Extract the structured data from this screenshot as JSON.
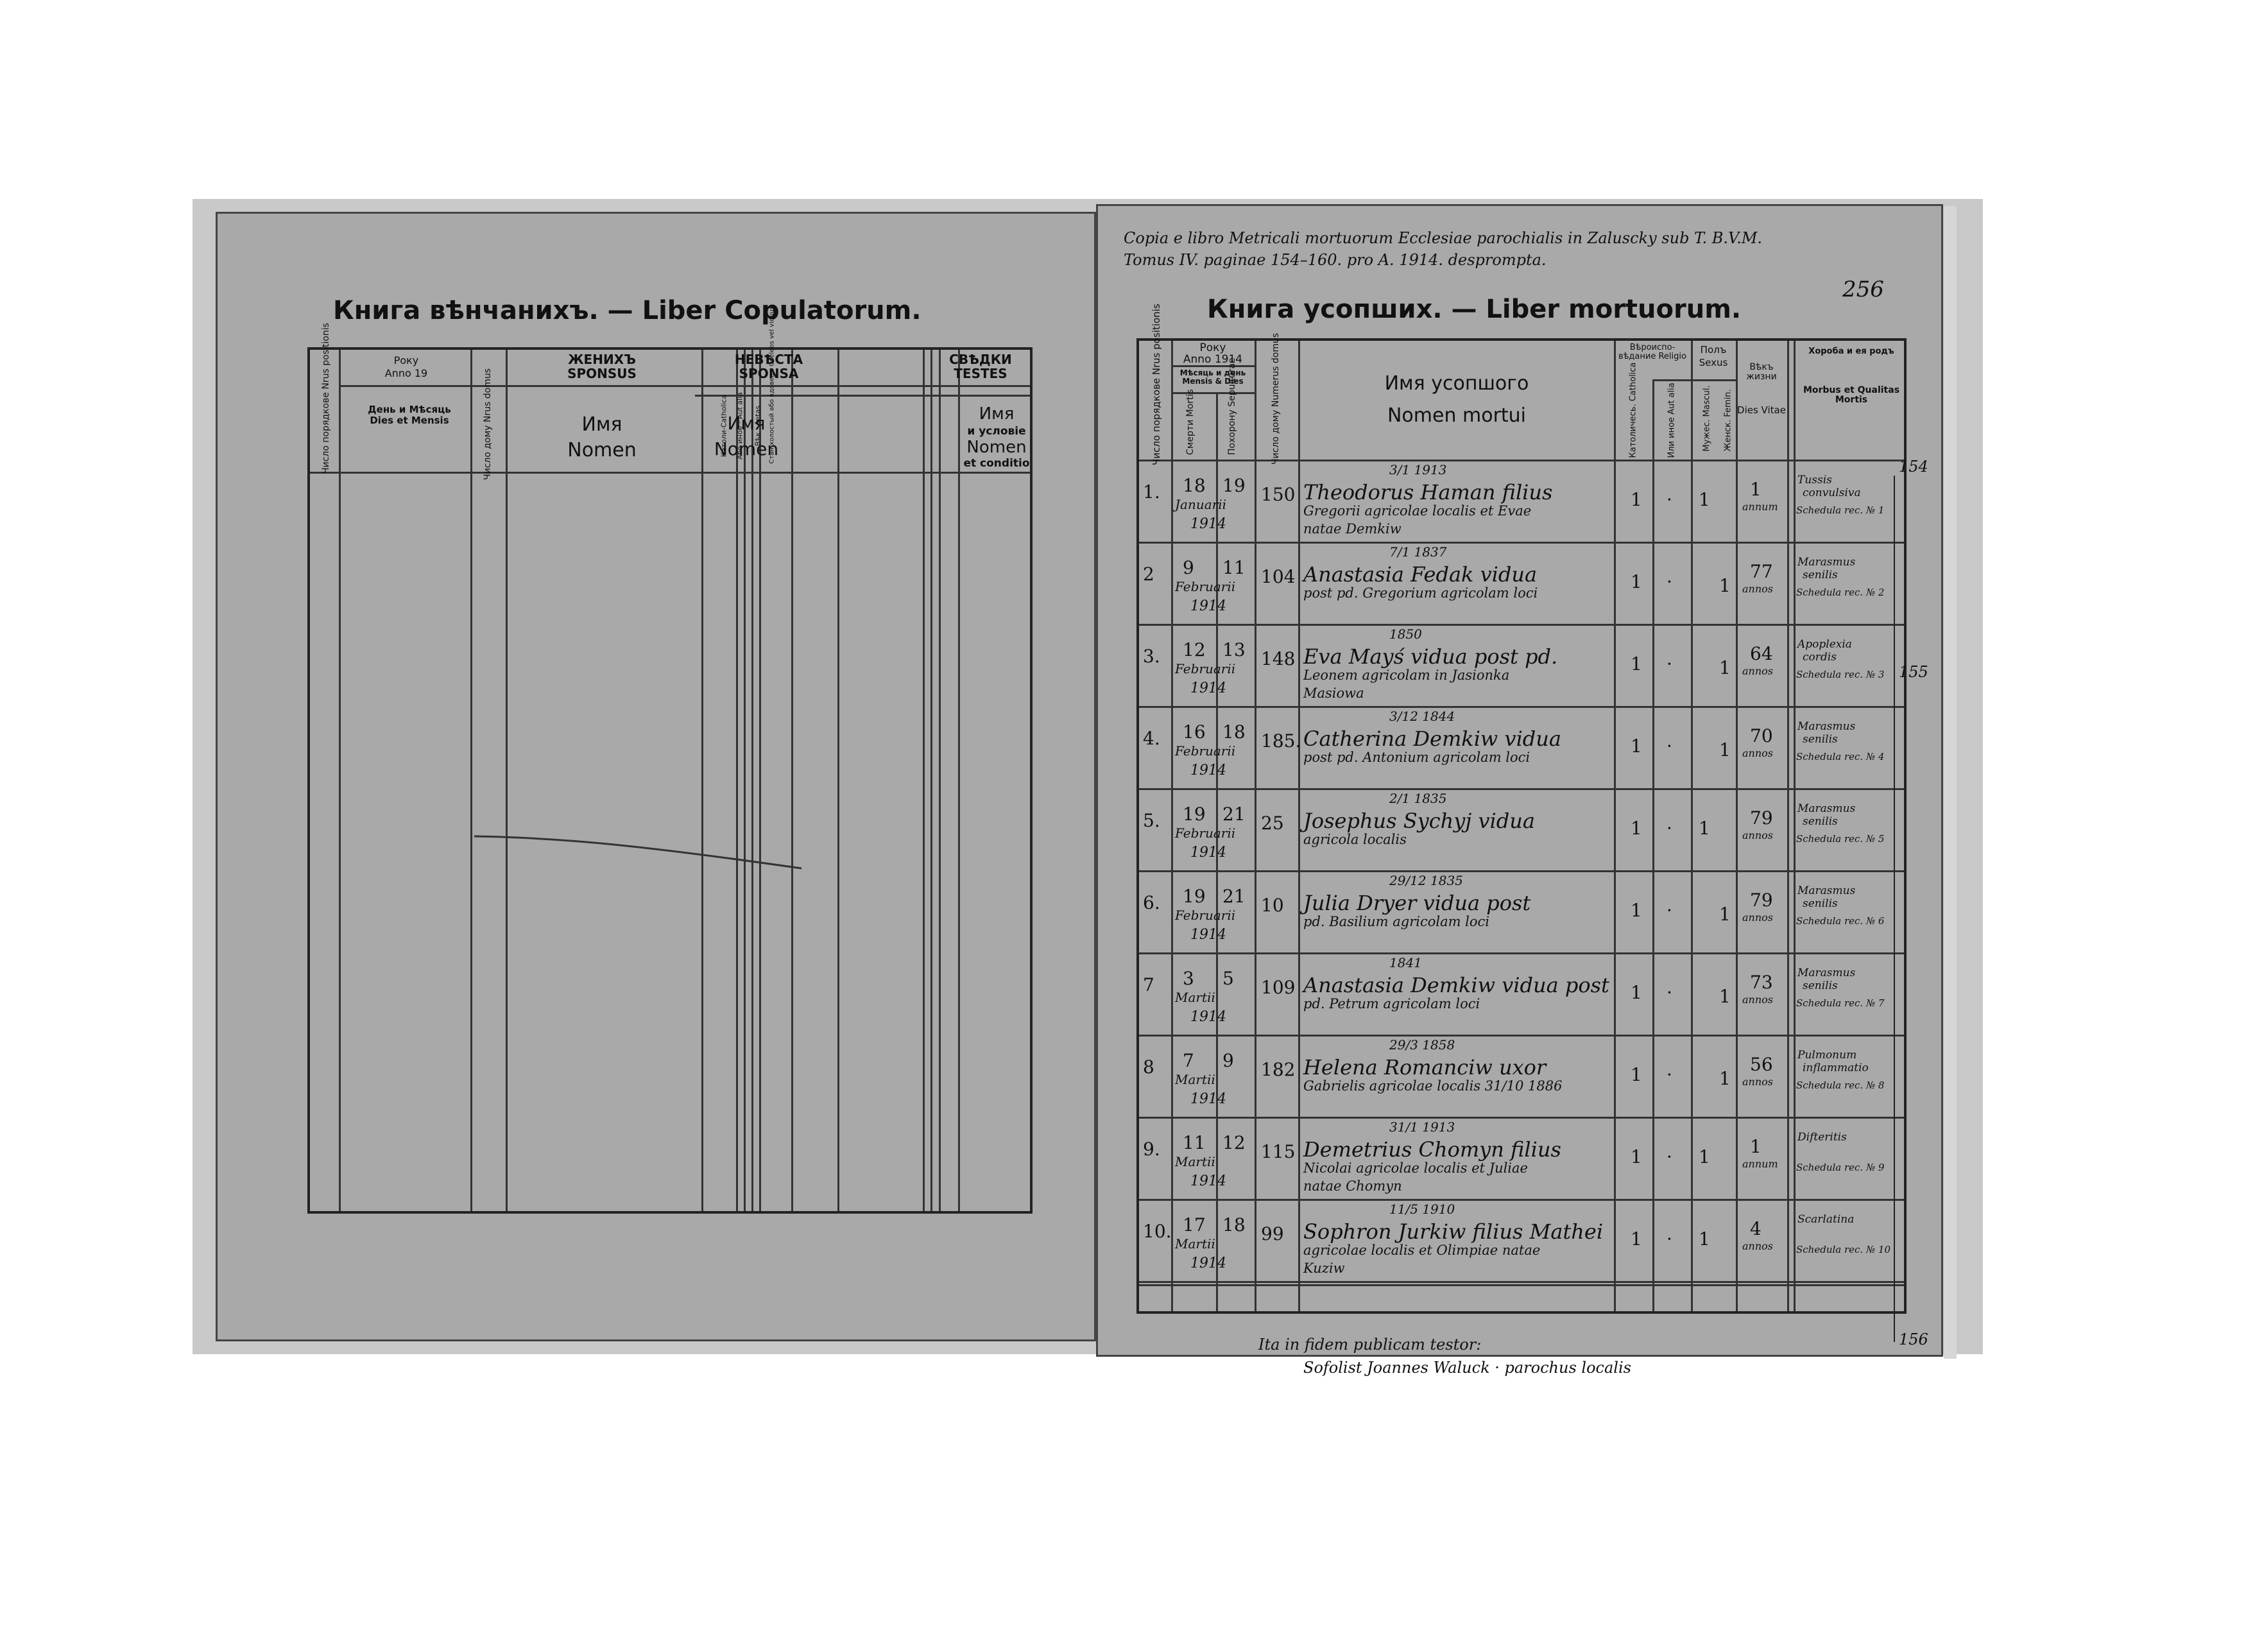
{
  "colors": {
    "page": "#a9a9a9",
    "ink": "#111111",
    "background": "#ffffff"
  },
  "left_page": {
    "title": "Книга вѣнчанихъ. — Liber Copulatorum.",
    "headers": {
      "numero": "Число порядкове Nrus positionis",
      "roku": "Року",
      "anno": "Anno 19",
      "den": "День и Мѣсяць Dies et Mensis",
      "domu": "Число дому Nrus domus",
      "zhenykh": "ЖЕНИХЪ",
      "sponsus": "SPONSUS",
      "imya": "Имя",
      "nomen": "Nomen",
      "religio": "Вѣроис-повѣд. Religio",
      "katol": "Католи-Catholica",
      "abo": "Або иное · Aut alia",
      "vik": "Вѣк · Aetas",
      "stan": "Стан холостый або вдовецъ Coelebs vel viduus",
      "nevesta": "НЕВѢСТА",
      "sponsa": "SPONSA",
      "svidky": "СВѢДКИ",
      "testes": "TESTES",
      "imya_usl": "Имя",
      "i_uslovie": "и условіе",
      "nomen_cond": "Nomen",
      "et_conditio": "et conditio"
    }
  },
  "right_page": {
    "note_line1": "Copia e libro Metricali mortuorum Ecclesiae parochialis in Zaluscky sub T. B.V.M.",
    "note_line2": "Tomus IV. paginae 154–160. pro A. 1914. desprompta.",
    "page_number": "256",
    "title": "Книга усопших. — Liber mortuorum.",
    "headers": {
      "numero": "Число порядкове Nrus positionis",
      "roku": "Року",
      "anno": "Anno 1914",
      "den": "Мѣсяць и день Mensis & Dies",
      "smerti": "Смерти Mortis",
      "pokhoron": "Похорону Sepulturae",
      "domu": "Число дому Numerus domus",
      "imya": "Имя усопшого",
      "nomen": "Nomen mortui",
      "religio": "Вѣроиспо-вѣдание Religio",
      "katol": "Католичесь. Catholica",
      "inna": "Или иное Aut alia",
      "pol": "Полъ",
      "sexus": "Sexus",
      "muzh": "Мужес. Mascul.",
      "zhen": "Женск. Femin.",
      "vik": "Вѣкъ жизни",
      "dies_vitae": "Dies Vitae",
      "khvoroba": "Хороба и ея родъ",
      "morbus": "Morbus et Qualitas Mortis"
    },
    "entries": [
      {
        "no": "1.",
        "d1": "18",
        "d2": "19",
        "month": "Januarii",
        "year": "1914",
        "house": "150",
        "birth": "3/1 1913",
        "l1": "Theodorus Haman filius",
        "l2": "Gregorii agricolae localis et Evae",
        "l3": "natae Demkiw",
        "cath": "1",
        "alia": "·",
        "m": "1",
        "f": "",
        "age": "1",
        "unit": "annum",
        "cause1": "Tussis",
        "cause2": "convulsiva",
        "sched": "Schedula rec. № 1"
      },
      {
        "no": "2",
        "d1": "9",
        "d2": "11",
        "month": "Februarii",
        "year": "1914",
        "house": "104",
        "birth": "7/1 1837",
        "l1": "Anastasia Fedak vidua",
        "l2": "post pd. Gregorium agricolam loci",
        "l3": "",
        "cath": "1",
        "alia": "·",
        "m": "",
        "f": "1",
        "age": "77",
        "unit": "annos",
        "cause1": "Marasmus",
        "cause2": "senilis",
        "sched": "Schedula rec. № 2"
      },
      {
        "no": "3.",
        "d1": "12",
        "d2": "13",
        "month": "Februarii",
        "year": "1914",
        "house": "148",
        "birth": "1850",
        "l1": "Eva Mayś vidua post pd.",
        "l2": "Leonem agricolam in Jasionka",
        "l3": "Masiowa",
        "cath": "1",
        "alia": "·",
        "m": "",
        "f": "1",
        "age": "64",
        "unit": "annos",
        "cause1": "Apoplexia",
        "cause2": "cordis",
        "sched": "Schedula rec. № 3"
      },
      {
        "no": "4.",
        "d1": "16",
        "d2": "18",
        "month": "Februarii",
        "year": "1914",
        "house": "185.",
        "birth": "3/12 1844",
        "l1": "Catherina Demkiw vidua",
        "l2": "post pd. Antonium agricolam loci",
        "l3": "",
        "cath": "1",
        "alia": "·",
        "m": "",
        "f": "1",
        "age": "70",
        "unit": "annos",
        "cause1": "Marasmus",
        "cause2": "senilis",
        "sched": "Schedula rec. № 4"
      },
      {
        "no": "5.",
        "d1": "19",
        "d2": "21",
        "month": "Februarii",
        "year": "1914",
        "house": "25",
        "birth": "2/1 1835",
        "l1": "Josephus Sychyj vidua",
        "l2": "agricola localis",
        "l3": "",
        "cath": "1",
        "alia": "·",
        "m": "1",
        "f": "",
        "age": "79",
        "unit": "annos",
        "cause1": "Marasmus",
        "cause2": "senilis",
        "sched": "Schedula rec. № 5"
      },
      {
        "no": "6.",
        "d1": "19",
        "d2": "21",
        "month": "Februarii",
        "year": "1914",
        "house": "10",
        "birth": "29/12 1835",
        "l1": "Julia Dryer vidua post",
        "l2": "pd. Basilium agricolam loci",
        "l3": "",
        "cath": "1",
        "alia": "·",
        "m": "",
        "f": "1",
        "age": "79",
        "unit": "annos",
        "cause1": "Marasmus",
        "cause2": "senilis",
        "sched": "Schedula rec. № 6"
      },
      {
        "no": "7",
        "d1": "3",
        "d2": "5",
        "month": "Martii",
        "year": "1914",
        "house": "109",
        "birth": "1841",
        "l1": "Anastasia Demkiw vidua post",
        "l2": "pd. Petrum agricolam loci",
        "l3": "",
        "cath": "1",
        "alia": "·",
        "m": "",
        "f": "1",
        "age": "73",
        "unit": "annos",
        "cause1": "Marasmus",
        "cause2": "senilis",
        "sched": "Schedula rec. № 7"
      },
      {
        "no": "8",
        "d1": "7",
        "d2": "9",
        "month": "Martii",
        "year": "1914",
        "house": "182",
        "birth": "29/3 1858",
        "l1": "Helena Romanciw uxor",
        "l2": "Gabrielis agricolae localis 31/10 1886",
        "l3": "",
        "cath": "1",
        "alia": "·",
        "m": "",
        "f": "1",
        "age": "56",
        "unit": "annos",
        "cause1": "Pulmonum",
        "cause2": "inflammatio",
        "sched": "Schedula rec. № 8"
      },
      {
        "no": "9.",
        "d1": "11",
        "d2": "12",
        "month": "Martii",
        "year": "1914",
        "house": "115",
        "birth": "31/1 1913",
        "l1": "Demetrius Chomyn filius",
        "l2": "Nicolai agricolae localis et Juliae",
        "l3": "natae Chomyn",
        "cath": "1",
        "alia": "·",
        "m": "1",
        "f": "",
        "age": "1",
        "unit": "annum",
        "cause1": "Difteritis",
        "cause2": "",
        "sched": "Schedula rec. № 9"
      },
      {
        "no": "10.",
        "d1": "17",
        "d2": "18",
        "month": "Martii",
        "year": "1914",
        "house": "99",
        "birth": "11/5 1910",
        "l1": "Sophron Jurkiw filius Mathei",
        "l2": "agricolae localis et Olimpiae natae",
        "l3": "Kuziw",
        "cath": "1",
        "alia": "·",
        "m": "1",
        "f": "",
        "age": "4",
        "unit": "annos",
        "cause1": "Scarlatina",
        "cause2": "",
        "sched": "Schedula rec. № 10"
      }
    ],
    "footer_line1": "Ita in fidem publicam testor:",
    "footer_line2": "Sofolist Joannes Waluck · parochus localis",
    "margin_marks": [
      "154",
      "155",
      "156"
    ]
  }
}
